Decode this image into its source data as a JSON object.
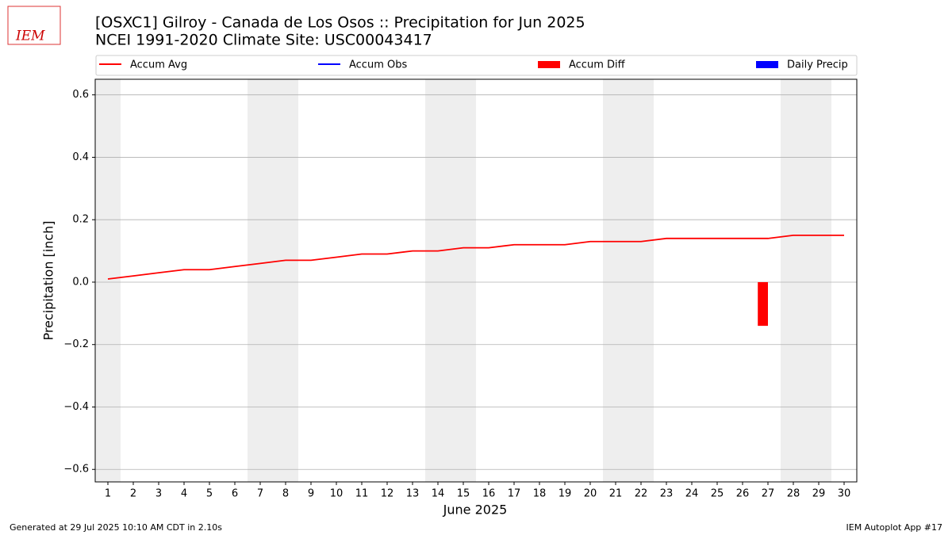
{
  "chart_data": {
    "type": "line",
    "title": "[OSXC1] Gilroy - Canada de Los Osos :: Precipitation for Jun 2025",
    "subtitle": "NCEI 1991-2020 Climate Site: USC00043417",
    "logo": "IEM",
    "x_label": "June 2025",
    "y_label": "Precipitation [inch]",
    "x": [
      1,
      2,
      3,
      4,
      5,
      6,
      7,
      8,
      9,
      10,
      11,
      12,
      13,
      14,
      15,
      16,
      17,
      18,
      19,
      20,
      21,
      22,
      23,
      24,
      25,
      26,
      27,
      28,
      29,
      30
    ],
    "xlim": [
      0.5,
      30.5
    ],
    "xticks": [
      1,
      2,
      3,
      4,
      5,
      6,
      7,
      8,
      9,
      10,
      11,
      12,
      13,
      14,
      15,
      16,
      17,
      18,
      19,
      20,
      21,
      22,
      23,
      24,
      25,
      26,
      27,
      28,
      29,
      30
    ],
    "ylim": [
      -0.64,
      0.65
    ],
    "yticks": [
      {
        "value": -0.6,
        "label": "−0.6"
      },
      {
        "value": -0.4,
        "label": "−0.4"
      },
      {
        "value": -0.2,
        "label": "−0.2"
      },
      {
        "value": 0,
        "label": "0.0"
      },
      0.2,
      0.4,
      0.6
    ],
    "grid": true,
    "weekend_spans": [
      [
        0.5,
        1.5
      ],
      [
        6.5,
        8.5
      ],
      [
        13.5,
        15.5
      ],
      [
        20.5,
        22.5
      ],
      [
        27.5,
        29.5
      ]
    ],
    "series": [
      {
        "name": "Accum Avg",
        "mark": "line",
        "color": "#ff0000",
        "values": [
          0.01,
          0.02,
          0.03,
          0.04,
          0.04,
          0.05,
          0.06,
          0.07,
          0.07,
          0.08,
          0.09,
          0.09,
          0.1,
          0.1,
          0.11,
          0.11,
          0.12,
          0.12,
          0.12,
          0.13,
          0.13,
          0.13,
          0.14,
          0.14,
          0.14,
          0.14,
          0.14,
          0.15,
          0.15,
          0.15
        ]
      },
      {
        "name": "Accum Obs",
        "mark": "line",
        "color": "#0000ff"
      },
      {
        "name": "Accum Diff",
        "mark": "bar",
        "color": "#ff0000",
        "values": [
          null,
          null,
          null,
          null,
          null,
          null,
          null,
          null,
          null,
          null,
          null,
          null,
          null,
          null,
          null,
          null,
          null,
          null,
          null,
          null,
          null,
          null,
          null,
          null,
          null,
          null,
          -0.14,
          null,
          null,
          null
        ]
      },
      {
        "name": "Daily Precip",
        "mark": "bar",
        "color": "#0000ff"
      }
    ],
    "footer_left": "Generated at 29 Jul 2025 10:10 AM CDT in 2.10s",
    "footer_right": "IEM Autoplot App #17"
  }
}
